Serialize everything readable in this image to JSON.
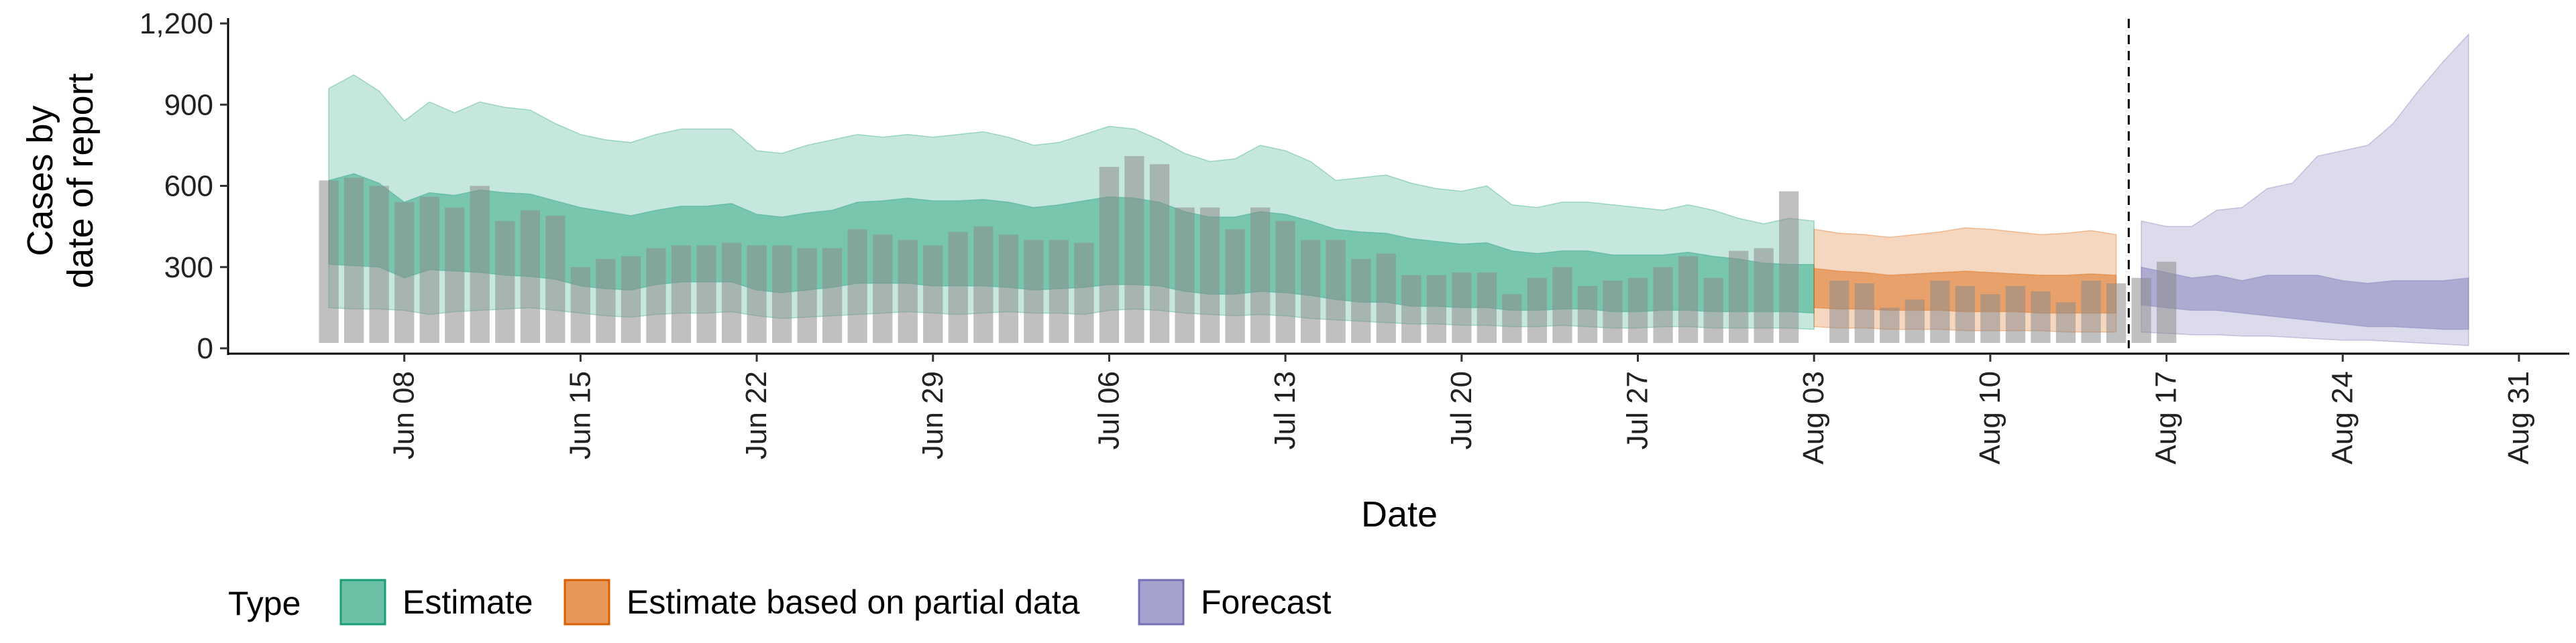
{
  "chart_data": {
    "type": "area",
    "xlabel": "Date",
    "ylabel_lines": [
      "Cases by",
      "date of report"
    ],
    "y_ticks": [
      0,
      300,
      600,
      900,
      1200
    ],
    "y_tick_labels": [
      "0",
      "300",
      "600",
      "900",
      "1,200"
    ],
    "ylim": [
      0,
      1200
    ],
    "xlim": [
      "2020-06-01",
      "2020-09-02"
    ],
    "x_ticks": [
      "2020-06-08",
      "2020-06-15",
      "2020-06-22",
      "2020-06-29",
      "2020-07-06",
      "2020-07-13",
      "2020-07-20",
      "2020-07-27",
      "2020-08-03",
      "2020-08-10",
      "2020-08-17",
      "2020-08-24",
      "2020-08-31"
    ],
    "x_tick_labels": [
      "Jun 08",
      "Jun 15",
      "Jun 22",
      "Jun 29",
      "Jul 06",
      "Jul 13",
      "Jul 20",
      "Jul 27",
      "Aug 03",
      "Aug 10",
      "Aug 17",
      "Aug 24",
      "Aug 31"
    ],
    "forecast_start": "2020-08-15",
    "reported_cases": {
      "start": "2020-06-05",
      "values": [
        620,
        630,
        600,
        540,
        560,
        520,
        600,
        470,
        510,
        490,
        300,
        330,
        340,
        370,
        380,
        380,
        390,
        380,
        380,
        370,
        370,
        440,
        420,
        400,
        380,
        430,
        450,
        420,
        400,
        400,
        390,
        670,
        710,
        680,
        520,
        520,
        440,
        520,
        470,
        400,
        400,
        330,
        350,
        270,
        270,
        280,
        280,
        200,
        260,
        300,
        230,
        250,
        260,
        300,
        340,
        260,
        360,
        370,
        580,
        0,
        250,
        240,
        150,
        180,
        250,
        230,
        200,
        230,
        210,
        170,
        250,
        240,
        260,
        320
      ]
    },
    "series": [
      {
        "name": "Estimate",
        "color": "#1b9e77",
        "start": "2020-06-05",
        "outer_low": [
          150,
          145,
          145,
          140,
          125,
          135,
          140,
          145,
          150,
          140,
          130,
          120,
          115,
          125,
          130,
          130,
          135,
          120,
          110,
          115,
          120,
          125,
          130,
          135,
          130,
          125,
          130,
          135,
          130,
          130,
          125,
          140,
          145,
          140,
          130,
          125,
          120,
          125,
          120,
          110,
          105,
          100,
          95,
          90,
          90,
          85,
          85,
          80,
          80,
          85,
          80,
          75,
          75,
          80,
          80,
          75,
          75,
          75,
          75,
          70
        ],
        "outer_high": [
          960,
          1010,
          950,
          840,
          910,
          870,
          910,
          890,
          880,
          830,
          790,
          770,
          760,
          790,
          810,
          810,
          810,
          730,
          720,
          750,
          770,
          790,
          780,
          790,
          780,
          790,
          800,
          780,
          750,
          760,
          790,
          820,
          810,
          770,
          720,
          690,
          700,
          750,
          730,
          690,
          620,
          630,
          640,
          610,
          590,
          580,
          600,
          530,
          520,
          540,
          540,
          530,
          520,
          510,
          530,
          510,
          480,
          460,
          480,
          470
        ],
        "inner_low": [
          310,
          305,
          300,
          260,
          290,
          285,
          280,
          270,
          265,
          255,
          230,
          220,
          215,
          235,
          245,
          245,
          245,
          215,
          205,
          215,
          225,
          240,
          240,
          240,
          230,
          230,
          230,
          225,
          215,
          220,
          225,
          235,
          235,
          230,
          210,
          200,
          200,
          210,
          205,
          195,
          180,
          170,
          170,
          155,
          155,
          150,
          150,
          140,
          140,
          145,
          145,
          135,
          135,
          140,
          140,
          135,
          135,
          135,
          135,
          130
        ],
        "inner_high": [
          620,
          645,
          610,
          540,
          575,
          565,
          585,
          575,
          570,
          545,
          520,
          505,
          490,
          510,
          525,
          525,
          535,
          495,
          485,
          500,
          510,
          540,
          545,
          555,
          545,
          545,
          550,
          540,
          520,
          530,
          545,
          560,
          555,
          540,
          505,
          485,
          485,
          505,
          495,
          470,
          440,
          430,
          425,
          405,
          395,
          385,
          390,
          360,
          350,
          360,
          360,
          345,
          345,
          345,
          355,
          340,
          330,
          315,
          310,
          310
        ]
      },
      {
        "name": "Estimate based on partial data",
        "color": "#d95f02",
        "start": "2020-08-03",
        "outer_low": [
          80,
          75,
          75,
          70,
          70,
          70,
          65,
          65,
          65,
          65,
          60,
          60,
          60
        ],
        "outer_high": [
          440,
          425,
          420,
          410,
          420,
          430,
          445,
          440,
          430,
          420,
          425,
          435,
          420
        ],
        "inner_low": [
          150,
          145,
          145,
          140,
          140,
          140,
          135,
          135,
          135,
          130,
          130,
          130,
          130
        ],
        "inner_high": [
          295,
          285,
          280,
          270,
          275,
          280,
          285,
          280,
          275,
          270,
          270,
          275,
          270
        ]
      },
      {
        "name": "Forecast",
        "color": "#7570b3",
        "start": "2020-08-16",
        "outer_low": [
          60,
          55,
          50,
          50,
          45,
          45,
          40,
          35,
          30,
          30,
          25,
          20,
          15,
          10
        ],
        "outer_high": [
          470,
          450,
          450,
          510,
          520,
          590,
          610,
          710,
          730,
          750,
          830,
          950,
          1060,
          1160
        ],
        "inner_low": [
          160,
          150,
          140,
          140,
          130,
          120,
          110,
          100,
          90,
          80,
          80,
          75,
          70,
          70
        ],
        "inner_high": [
          300,
          280,
          260,
          270,
          250,
          270,
          270,
          270,
          250,
          240,
          250,
          250,
          250,
          260
        ]
      }
    ],
    "legend": {
      "title": "Type",
      "position": "bottom",
      "items": [
        "Estimate",
        "Estimate based on partial data",
        "Forecast"
      ]
    }
  }
}
